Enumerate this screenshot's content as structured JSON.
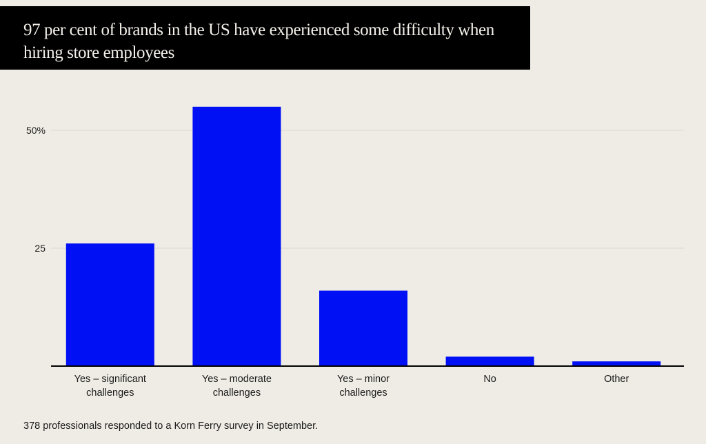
{
  "title": "97 per cent of brands in the US have experienced some difficulty when hiring store employees",
  "footnote": "378 professionals responded to a Korn Ferry survey in September.",
  "colors": {
    "bar": "#0010f5",
    "background": "#efece5",
    "title_bg": "#000000"
  },
  "chart_data": {
    "type": "bar",
    "title": "97 per cent of brands in the US have experienced some difficulty when hiring store employees",
    "xlabel": "",
    "ylabel": "",
    "categories": [
      [
        "Yes – significant",
        "challenges"
      ],
      [
        "Yes – moderate",
        "challenges"
      ],
      [
        "Yes – minor",
        "challenges"
      ],
      [
        "No"
      ],
      [
        "Other"
      ]
    ],
    "values": [
      26,
      55,
      16,
      2,
      1
    ],
    "ylim": [
      0,
      55
    ],
    "yticks": [
      {
        "value": 25,
        "label": "25"
      },
      {
        "value": 50,
        "label": "50%"
      }
    ],
    "grid": true,
    "legend": "none"
  }
}
